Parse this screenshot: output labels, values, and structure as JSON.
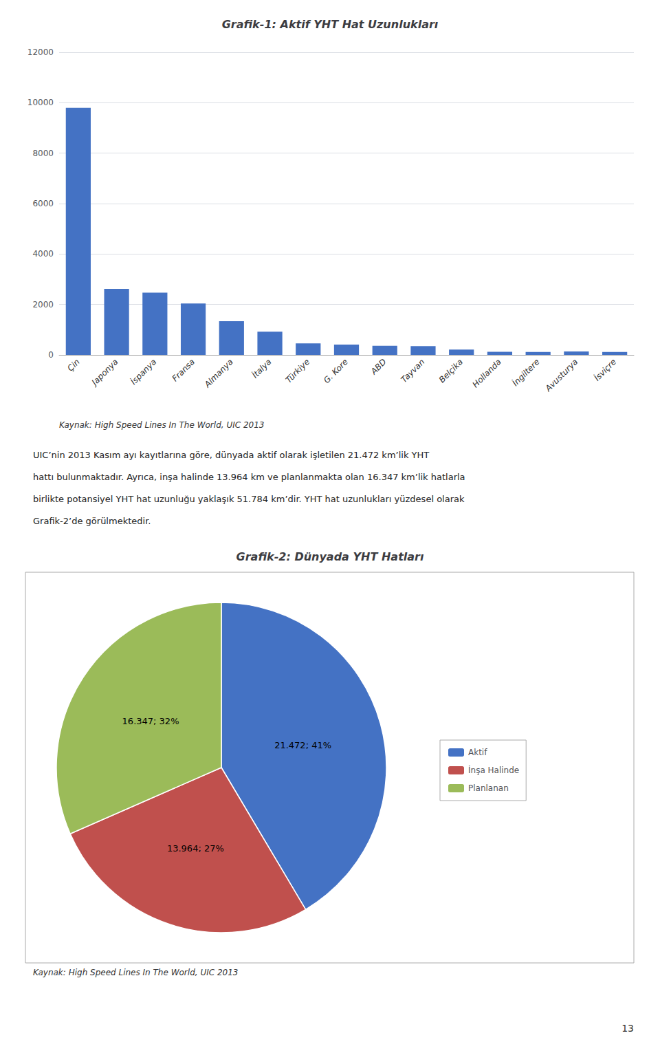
{
  "chart_data": [
    {
      "type": "bar",
      "title": "Grafik-1: Aktif YHT Hat Uzunlukları",
      "categories": [
        "Çin",
        "Japonya",
        "İspanya",
        "Fransa",
        "Almanya",
        "İtalya",
        "Türkiye",
        "G. Kore",
        "ABD",
        "Tayvan",
        "Belçika",
        "Hollanda",
        "İngiltere",
        "Avusturya",
        "İsviçre"
      ],
      "values": [
        9800,
        2616,
        2471,
        2036,
        1334,
        923,
        457,
        412,
        362,
        345,
        209,
        120,
        113,
        135,
        115
      ],
      "color": "#4472C4",
      "ylim": [
        0,
        12000
      ],
      "yticks": [
        0,
        2000,
        4000,
        6000,
        8000,
        10000,
        12000
      ],
      "grid": true,
      "annotations": [
        "Kaynak: High Speed Lines In The World, UIC 2013",
        "UIC’nin 2013 Kasım ayı kayıtlarına göre, dünyada aktif olarak işletilen 21.472 km’lik YHT",
        "hattı bulunmaktadır. Ayrıca, inşa halinde 13.964 km ve planlanmakta olan 16.347 km’lik hatlarla",
        "birlikte potansiyel YHT hat uzunluğu yaklaşık 51.784 km’dir. YHT hat uzunlukları yüzdesel olarak",
        "Grafik-2’de görülmektedir."
      ]
    },
    {
      "type": "pie",
      "title": "Grafik-2: Dünyada YHT Hatları",
      "categories": [
        "Aktif",
        "İnşa Halinde",
        "Planlanan"
      ],
      "values": [
        21472,
        13964,
        16347
      ],
      "value_labels": [
        "21.472; 41%",
        "13.964; 27%",
        "16.347; 32%"
      ],
      "colors": [
        "#4472C4",
        "#C0504D",
        "#9BBB59"
      ],
      "data_labels": true,
      "legend": "right",
      "annotations": [
        "Kaynak: High Speed Lines In The World, UIC 2013",
        "13"
      ]
    }
  ]
}
